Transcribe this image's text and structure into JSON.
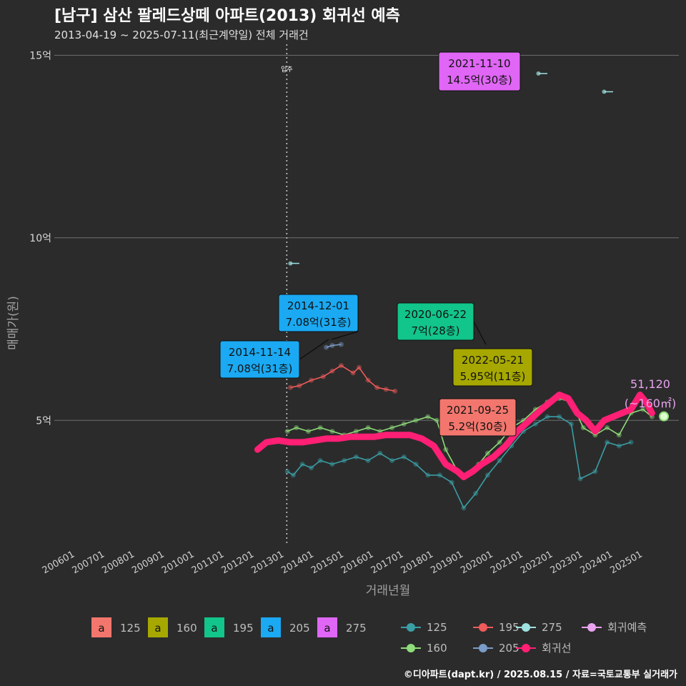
{
  "header": {
    "title": "[남구] 삼산 팔레드상떼 아파트(2013) 회귀선 예측",
    "subtitle": "2013-04-19 ~ 2025-07-11(최근계약일) 전체 거래건",
    "caption": "©디아파트(dapt.kr) / 2025.08.15 / 자료=국토교통부 실거래가"
  },
  "colors": {
    "background": "#2b2b2b",
    "s125": "#3a9ea5",
    "s160": "#8fdc7a",
    "s195": "#ef5a5a",
    "s205": "#7a9cc8",
    "s275": "#9fe0e0",
    "regression": "#ff1f74",
    "forecast": "#e9a3ef"
  },
  "chart_data": {
    "type": "line",
    "xlabel": "거래년월",
    "ylabel": "매매가(원)",
    "x_ticks": [
      "200601",
      "200701",
      "200801",
      "200901",
      "201001",
      "201101",
      "201201",
      "201301",
      "201401",
      "201501",
      "201601",
      "201701",
      "201801",
      "201901",
      "202001",
      "202101",
      "202201",
      "202301",
      "202401",
      "202501"
    ],
    "y_ticks": [
      {
        "value": 5,
        "label": "5억"
      },
      {
        "value": 10,
        "label": "10억"
      },
      {
        "value": 15,
        "label": "15억"
      }
    ],
    "ylim": [
      1.6,
      15.3
    ],
    "xlim": [
      2005.3,
      2026.2
    ],
    "grid": true,
    "vline": {
      "x": 2013.08,
      "label": "입주"
    },
    "series": [
      {
        "name": "125",
        "color": "#3a9ea5",
        "points": [
          [
            2013.1,
            3.6
          ],
          [
            2013.3,
            3.5
          ],
          [
            2013.6,
            3.8
          ],
          [
            2013.9,
            3.7
          ],
          [
            2014.2,
            3.9
          ],
          [
            2014.6,
            3.8
          ],
          [
            2015.0,
            3.9
          ],
          [
            2015.4,
            4.0
          ],
          [
            2015.8,
            3.9
          ],
          [
            2016.2,
            4.1
          ],
          [
            2016.6,
            3.9
          ],
          [
            2017.0,
            4.0
          ],
          [
            2017.4,
            3.8
          ],
          [
            2017.8,
            3.5
          ],
          [
            2018.2,
            3.5
          ],
          [
            2018.6,
            3.3
          ],
          [
            2019.0,
            2.6
          ],
          [
            2019.4,
            3.0
          ],
          [
            2019.8,
            3.5
          ],
          [
            2020.2,
            3.9
          ],
          [
            2020.6,
            4.3
          ],
          [
            2021.0,
            4.7
          ],
          [
            2021.4,
            4.9
          ],
          [
            2021.8,
            5.1
          ],
          [
            2022.2,
            5.1
          ],
          [
            2022.6,
            4.9
          ],
          [
            2022.9,
            3.4
          ],
          [
            2023.4,
            3.6
          ],
          [
            2023.8,
            4.4
          ],
          [
            2024.2,
            4.3
          ],
          [
            2024.6,
            4.4
          ]
        ]
      },
      {
        "name": "160",
        "color": "#8fdc7a",
        "points": [
          [
            2013.1,
            4.7
          ],
          [
            2013.4,
            4.8
          ],
          [
            2013.8,
            4.7
          ],
          [
            2014.2,
            4.8
          ],
          [
            2014.6,
            4.7
          ],
          [
            2015.0,
            4.6
          ],
          [
            2015.4,
            4.7
          ],
          [
            2015.8,
            4.8
          ],
          [
            2016.2,
            4.7
          ],
          [
            2016.6,
            4.8
          ],
          [
            2017.0,
            4.9
          ],
          [
            2017.4,
            5.0
          ],
          [
            2017.8,
            5.1
          ],
          [
            2018.1,
            5.0
          ],
          [
            2018.4,
            4.2
          ],
          [
            2018.8,
            3.6
          ],
          [
            2019.1,
            3.5
          ],
          [
            2019.5,
            3.8
          ],
          [
            2019.8,
            4.1
          ],
          [
            2020.2,
            4.4
          ],
          [
            2020.6,
            4.8
          ],
          [
            2021.0,
            5.0
          ],
          [
            2021.4,
            5.3
          ],
          [
            2021.8,
            5.5
          ],
          [
            2022.2,
            5.6
          ],
          [
            2022.6,
            5.5
          ],
          [
            2023.0,
            4.8
          ],
          [
            2023.4,
            4.6
          ],
          [
            2023.8,
            4.8
          ],
          [
            2024.2,
            4.6
          ],
          [
            2024.6,
            5.2
          ],
          [
            2025.0,
            5.3
          ],
          [
            2025.3,
            5.1
          ]
        ]
      },
      {
        "name": "195",
        "color": "#ef5a5a",
        "points": [
          [
            2013.2,
            5.9
          ],
          [
            2013.5,
            5.95
          ],
          [
            2013.9,
            6.1
          ],
          [
            2014.3,
            6.2
          ],
          [
            2014.6,
            6.35
          ],
          [
            2014.9,
            6.5
          ],
          [
            2015.3,
            6.3
          ],
          [
            2015.5,
            6.45
          ],
          [
            2015.8,
            6.1
          ],
          [
            2016.1,
            5.9
          ],
          [
            2016.4,
            5.85
          ],
          [
            2016.7,
            5.8
          ]
        ]
      },
      {
        "name": "205",
        "color": "#7a9cc8",
        "points": [
          [
            2014.4,
            7.0
          ],
          [
            2014.6,
            7.05
          ],
          [
            2014.9,
            7.08
          ]
        ]
      },
      {
        "name": "275",
        "color": "#9fe0e0",
        "points": [
          [
            2013.2,
            9.3
          ],
          [
            2013.5,
            9.3
          ],
          [
            2021.5,
            14.5
          ],
          [
            2021.8,
            14.5
          ],
          [
            2023.7,
            14.0
          ],
          [
            2024.0,
            14.0
          ]
        ]
      },
      {
        "name": "회귀선",
        "color": "#ff1f74",
        "points": [
          [
            2012.1,
            4.2
          ],
          [
            2012.4,
            4.4
          ],
          [
            2012.8,
            4.45
          ],
          [
            2013.2,
            4.4
          ],
          [
            2013.6,
            4.4
          ],
          [
            2014.0,
            4.45
          ],
          [
            2014.4,
            4.5
          ],
          [
            2014.8,
            4.5
          ],
          [
            2015.2,
            4.55
          ],
          [
            2015.6,
            4.55
          ],
          [
            2016.0,
            4.55
          ],
          [
            2016.4,
            4.6
          ],
          [
            2016.8,
            4.6
          ],
          [
            2017.2,
            4.6
          ],
          [
            2017.6,
            4.5
          ],
          [
            2018.0,
            4.3
          ],
          [
            2018.4,
            3.8
          ],
          [
            2018.8,
            3.6
          ],
          [
            2019.0,
            3.45
          ],
          [
            2019.3,
            3.6
          ],
          [
            2019.6,
            3.8
          ],
          [
            2020.0,
            4.0
          ],
          [
            2020.4,
            4.3
          ],
          [
            2020.8,
            4.7
          ],
          [
            2021.2,
            5.0
          ],
          [
            2021.6,
            5.3
          ],
          [
            2021.9,
            5.5
          ],
          [
            2022.2,
            5.7
          ],
          [
            2022.5,
            5.6
          ],
          [
            2022.8,
            5.2
          ],
          [
            2023.1,
            5.0
          ],
          [
            2023.4,
            4.7
          ],
          [
            2023.7,
            5.0
          ],
          [
            2024.0,
            5.1
          ],
          [
            2024.3,
            5.2
          ],
          [
            2024.6,
            5.3
          ],
          [
            2024.9,
            5.7
          ],
          [
            2025.1,
            5.5
          ],
          [
            2025.3,
            5.2
          ]
        ]
      }
    ],
    "forecast": {
      "name": "회귀예측",
      "x": 2025.7,
      "y": 5.11,
      "label_value": "51,120",
      "label_area": "(~160㎡)"
    },
    "annotations": [
      {
        "date": "2021-11-10",
        "price": "14.5억(30층)",
        "color": "#e066f5",
        "x": 2021.6,
        "y": 14.5
      },
      {
        "date": "2014-12-01",
        "price": "7.08억(31층)",
        "color": "#1aa9f2",
        "x": 2014.9,
        "y": 7.08
      },
      {
        "date": "2014-11-14",
        "price": "7.08억(31층)",
        "color": "#1aa9f2",
        "x": 2014.9,
        "y": 7.08
      },
      {
        "date": "2020-06-22",
        "price": "7억(28층)",
        "color": "#12c58a",
        "x": 2020.5,
        "y": 7.0
      },
      {
        "date": "2022-05-21",
        "price": "5.95억(11층)",
        "color": "#a6a800",
        "x": 2022.4,
        "y": 5.95
      },
      {
        "date": "2021-09-25",
        "price": "5.2억(30층)",
        "color": "#f2766d",
        "x": 2021.7,
        "y": 5.2
      }
    ]
  },
  "legend": {
    "label_items": [
      {
        "key": "a",
        "label": "125",
        "color": "#f2766d"
      },
      {
        "key": "a",
        "label": "160",
        "color": "#a6a800"
      },
      {
        "key": "a",
        "label": "195",
        "color": "#12c58a"
      },
      {
        "key": "a",
        "label": "205",
        "color": "#1aa9f2"
      },
      {
        "key": "a",
        "label": "275",
        "color": "#e066f5"
      }
    ],
    "line_items": [
      {
        "label": "125",
        "color": "#3a9ea5"
      },
      {
        "label": "195",
        "color": "#ef5a5a"
      },
      {
        "label": "275",
        "color": "#9fe0e0"
      },
      {
        "label": "회귀예측",
        "color": "#e9a3ef"
      },
      {
        "label": "160",
        "color": "#8fdc7a"
      },
      {
        "label": "205",
        "color": "#7a9cc8"
      },
      {
        "label": "회귀선",
        "color": "#ff1f74"
      }
    ]
  }
}
